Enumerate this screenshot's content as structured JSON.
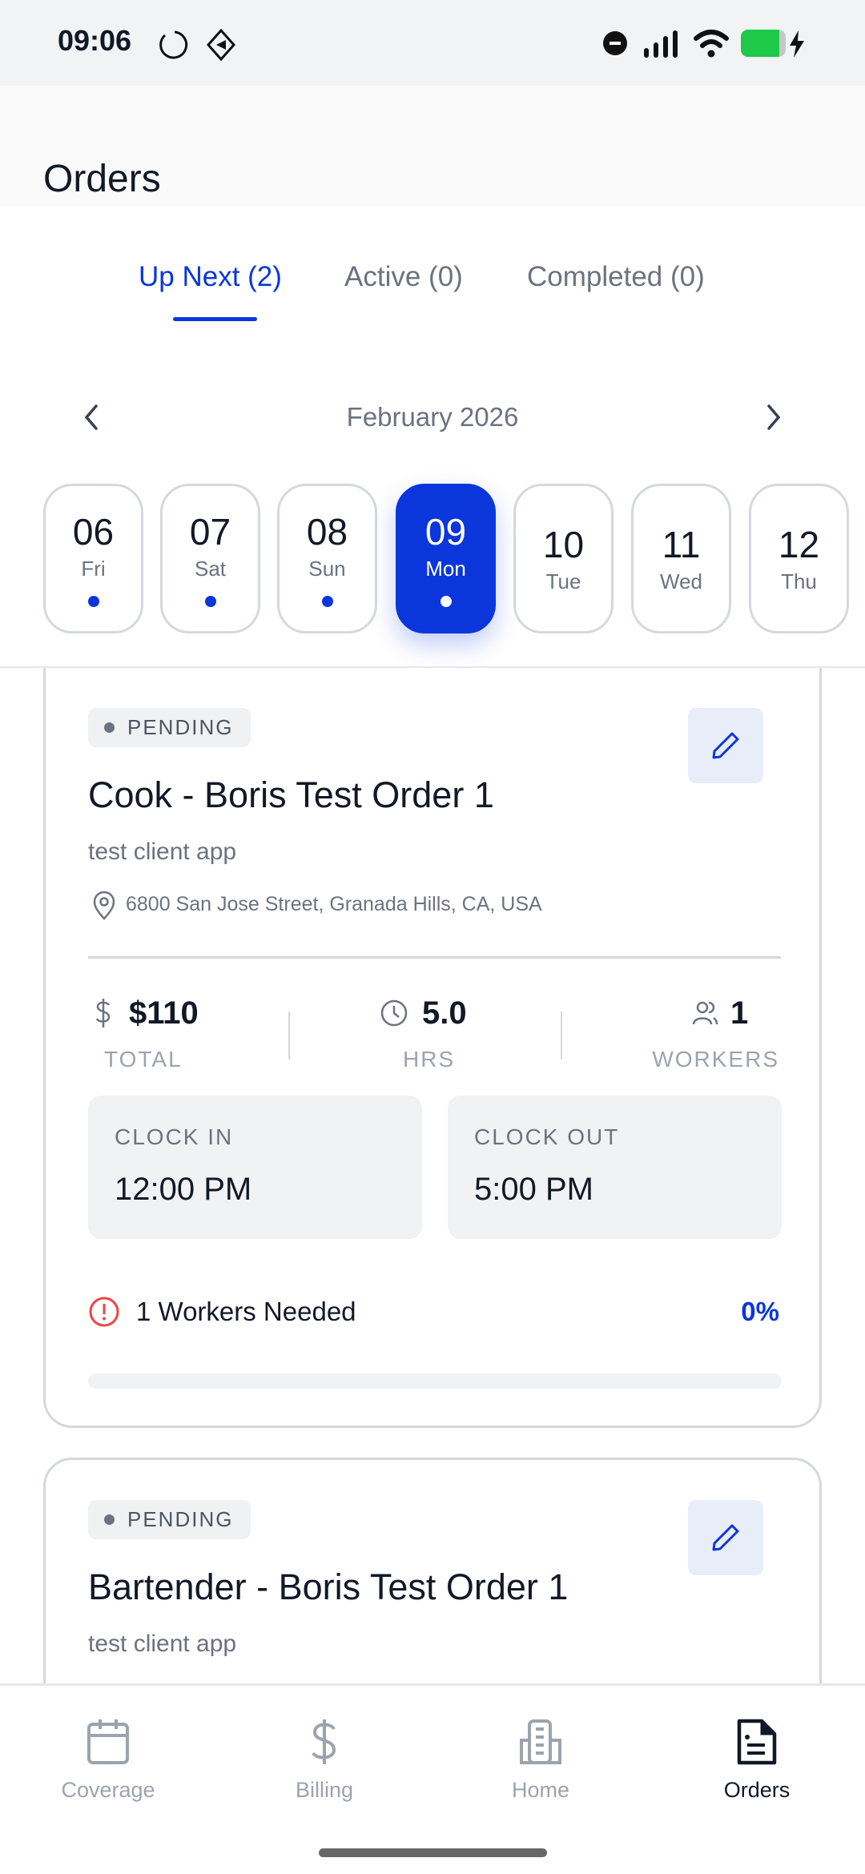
{
  "status_bar": {
    "time": "09:06"
  },
  "header": {
    "title": "Orders"
  },
  "tabs": [
    {
      "label": "Up Next (2)",
      "active": true
    },
    {
      "label": "Active (0)"
    },
    {
      "label": "Completed (0)"
    }
  ],
  "calendar": {
    "month": "February 2026",
    "days": [
      {
        "num": "06",
        "day": "Fri",
        "has_orders": true
      },
      {
        "num": "07",
        "day": "Sat",
        "has_orders": true
      },
      {
        "num": "08",
        "day": "Sun",
        "has_orders": true
      },
      {
        "num": "09",
        "day": "Mon",
        "has_orders": true,
        "selected": true
      },
      {
        "num": "10",
        "day": "Tue",
        "has_orders": false
      },
      {
        "num": "11",
        "day": "Wed",
        "has_orders": false
      },
      {
        "num": "12",
        "day": "Thu",
        "has_orders": false
      }
    ]
  },
  "orders": [
    {
      "status": "PENDING",
      "title": "Cook - Boris Test Order 1",
      "client": "test client app",
      "address": "6800 San Jose Street, Granada Hills, CA, USA",
      "total": "$110",
      "total_label": "TOTAL",
      "hours": "5.0",
      "hours_label": "HRS",
      "workers": "1",
      "workers_label": "WORKERS",
      "clock_in_label": "CLOCK IN",
      "clock_in": "12:00 PM",
      "clock_out_label": "CLOCK OUT",
      "clock_out": "5:00 PM",
      "needed": "1 Workers Needed",
      "fill_percent": "0%",
      "fill": 0
    },
    {
      "status": "PENDING",
      "title": "Bartender - Boris Test Order 1",
      "client": "test client app"
    }
  ],
  "bottom_nav": [
    {
      "label": "Coverage"
    },
    {
      "label": "Billing"
    },
    {
      "label": "Home"
    },
    {
      "label": "Orders",
      "active": true
    }
  ],
  "colors": {
    "accent": "#0a36dc",
    "alert": "#ef4444",
    "battery": "#1ec94a"
  }
}
